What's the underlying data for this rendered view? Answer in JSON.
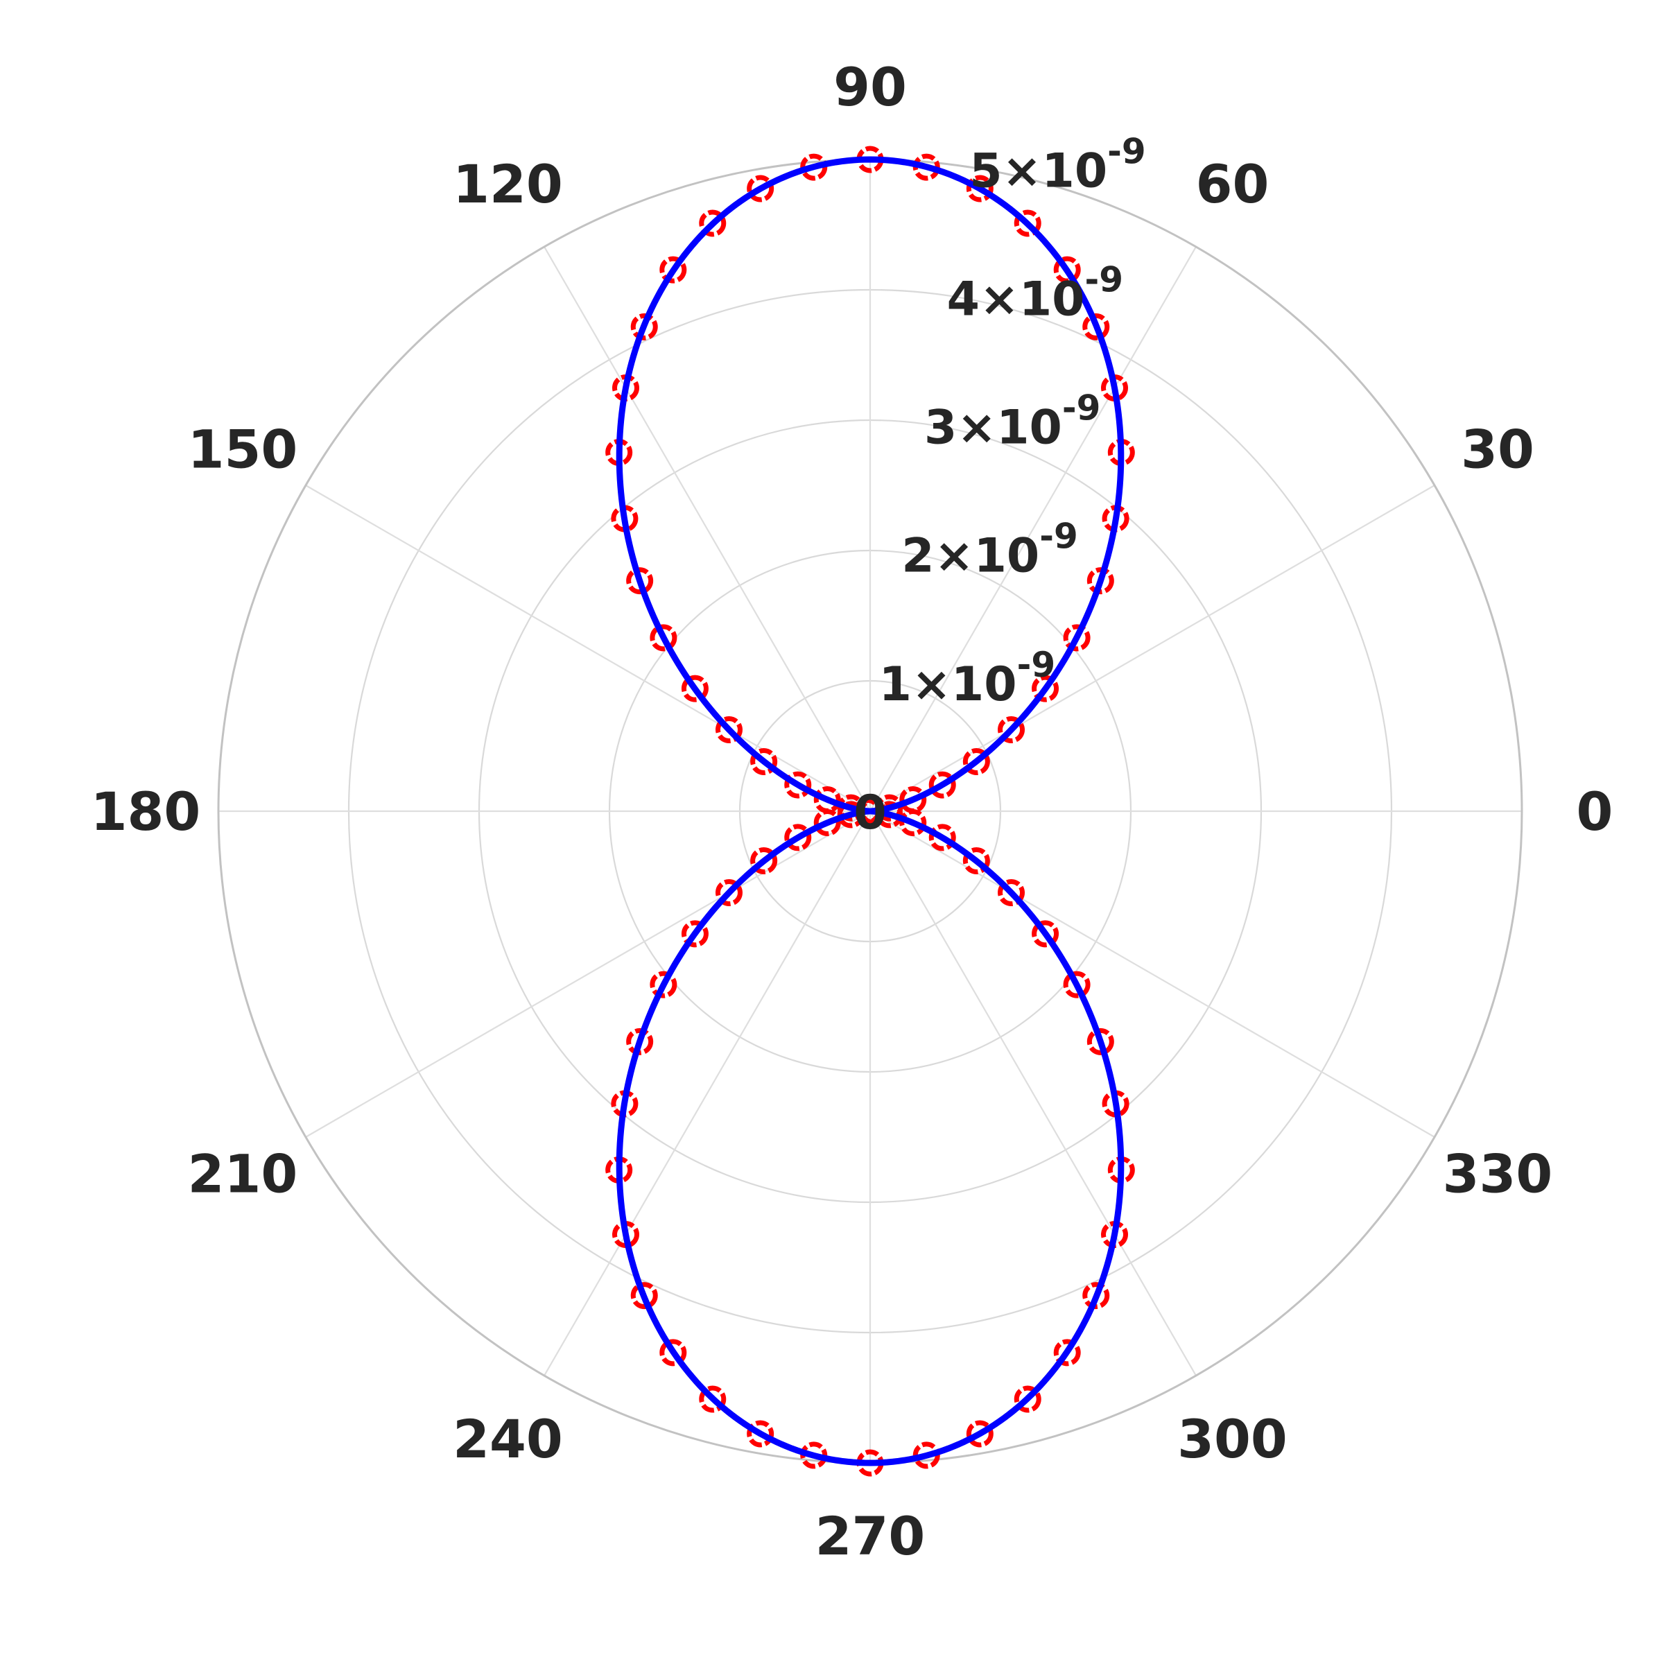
{
  "chart_data": {
    "type": "polar",
    "title": "",
    "theta_unit": "degrees",
    "r_range": [
      0,
      5e-09
    ],
    "angular_ticks": [
      "0",
      "30",
      "60",
      "90",
      "120",
      "150",
      "180",
      "210",
      "240",
      "270",
      "300",
      "330"
    ],
    "radial_ticks": [
      {
        "value": 0,
        "mant": "0",
        "exp": ""
      },
      {
        "value": 1e-09,
        "mant": "1×10",
        "exp": "-9"
      },
      {
        "value": 2e-09,
        "mant": "2×10",
        "exp": "-9"
      },
      {
        "value": 3e-09,
        "mant": "3×10",
        "exp": "-9"
      },
      {
        "value": 4e-09,
        "mant": "4×10",
        "exp": "-9"
      },
      {
        "value": 5e-09,
        "mant": "5×10",
        "exp": "-9"
      }
    ],
    "grid": true,
    "legend": "none",
    "series": [
      {
        "style": "markers",
        "marker": "open-circle",
        "color": "#ff0000",
        "sample_step_deg": 5,
        "theta": [
          0,
          5,
          10,
          15,
          20,
          25,
          30,
          35,
          40,
          45,
          50,
          55,
          60,
          65,
          70,
          75,
          80,
          85,
          90,
          95,
          100,
          105,
          110,
          115,
          120,
          125,
          130,
          135,
          140,
          145,
          150,
          155,
          160,
          165,
          170,
          175,
          180,
          185,
          190,
          195,
          200,
          205,
          210,
          215,
          220,
          225,
          230,
          235,
          240,
          245,
          250,
          255,
          260,
          265,
          270,
          275,
          280,
          285,
          290,
          295,
          300,
          305,
          310,
          315,
          320,
          325,
          330,
          335,
          340,
          345,
          350,
          355
        ],
        "r": [
          0,
          2.1e-11,
          1.5e-10,
          3.4e-10,
          5.9e-10,
          9e-10,
          1.25e-09,
          1.64e-09,
          2.07e-09,
          2.5e-09,
          2.93e-09,
          3.36e-09,
          3.75e-09,
          4.1e-09,
          4.42e-09,
          4.67e-09,
          4.85e-09,
          4.96e-09,
          5e-09,
          4.96e-09,
          4.85e-09,
          4.67e-09,
          4.42e-09,
          4.1e-09,
          3.75e-09,
          3.36e-09,
          2.93e-09,
          2.5e-09,
          2.07e-09,
          1.64e-09,
          1.25e-09,
          9e-10,
          5.9e-10,
          3.4e-10,
          1.5e-10,
          2.1e-11,
          0,
          2.1e-11,
          1.5e-10,
          3.4e-10,
          5.9e-10,
          9e-10,
          1.25e-09,
          1.64e-09,
          2.07e-09,
          2.5e-09,
          2.93e-09,
          3.36e-09,
          3.75e-09,
          4.1e-09,
          4.42e-09,
          4.67e-09,
          4.85e-09,
          4.96e-09,
          5e-09,
          4.96e-09,
          4.85e-09,
          4.67e-09,
          4.42e-09,
          4.1e-09,
          3.75e-09,
          3.36e-09,
          2.93e-09,
          2.5e-09,
          2.07e-09,
          1.64e-09,
          1.25e-09,
          9e-10,
          5.9e-10,
          3.4e-10,
          1.5e-10,
          2.1e-11
        ]
      },
      {
        "style": "line",
        "color": "#0000ff",
        "function": "r = 5e-9 * sin(theta)^2",
        "r_max": 5e-09
      }
    ]
  }
}
